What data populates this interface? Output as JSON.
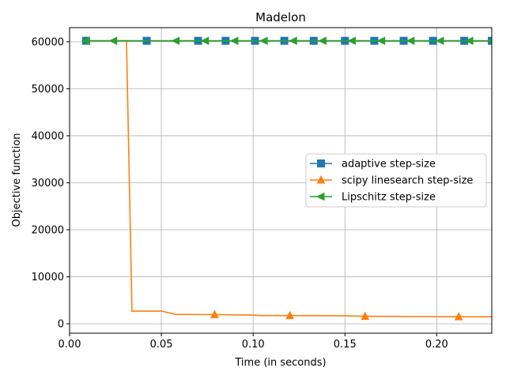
{
  "chart_data": {
    "type": "line",
    "title": "Madelon",
    "xlabel": "Time (in seconds)",
    "ylabel": "Objective function",
    "xlim": [
      0.0,
      0.23
    ],
    "ylim": [
      -2000,
      63000
    ],
    "xticks": [
      0.0,
      0.05,
      0.1,
      0.15,
      0.2
    ],
    "xtick_labels": [
      "0.00",
      "0.05",
      "0.10",
      "0.15",
      "0.20"
    ],
    "yticks": [
      0,
      10000,
      20000,
      30000,
      40000,
      50000,
      60000
    ],
    "ytick_labels": [
      "0",
      "10000",
      "20000",
      "30000",
      "40000",
      "50000",
      "60000"
    ],
    "grid": true,
    "legend_position": "center-right",
    "series": [
      {
        "name": "adaptive step-size",
        "color": "#1f77b4",
        "marker": "square",
        "x": [
          0.009,
          0.042,
          0.07,
          0.085,
          0.101,
          0.117,
          0.133,
          0.15,
          0.166,
          0.182,
          0.198,
          0.215,
          0.23
        ],
        "y": [
          60200,
          60200,
          60200,
          60200,
          60200,
          60200,
          60200,
          60200,
          60200,
          60200,
          60200,
          60200,
          60200
        ]
      },
      {
        "name": "scipy linesearch step-size",
        "color": "#ff7f0e",
        "marker": "triangle-up",
        "x": [
          0.009,
          0.031,
          0.034,
          0.05,
          0.058,
          0.079,
          0.1,
          0.105,
          0.12,
          0.15,
          0.161,
          0.19,
          0.212,
          0.23
        ],
        "y": [
          60200,
          60200,
          2700,
          2700,
          2000,
          1950,
          1850,
          1750,
          1750,
          1700,
          1600,
          1550,
          1500,
          1500
        ],
        "marker_x": [
          0.009,
          0.079,
          0.12,
          0.161,
          0.212
        ]
      },
      {
        "name": "Lipschitz step-size",
        "color": "#2ca02c",
        "marker": "triangle-left",
        "x": [
          0.009,
          0.024,
          0.058,
          0.074,
          0.09,
          0.106,
          0.122,
          0.138,
          0.154,
          0.17,
          0.186,
          0.202,
          0.218,
          0.23
        ],
        "y": [
          60200,
          60200,
          60200,
          60200,
          60200,
          60200,
          60200,
          60200,
          60200,
          60200,
          60200,
          60200,
          60200,
          60200
        ]
      }
    ]
  }
}
